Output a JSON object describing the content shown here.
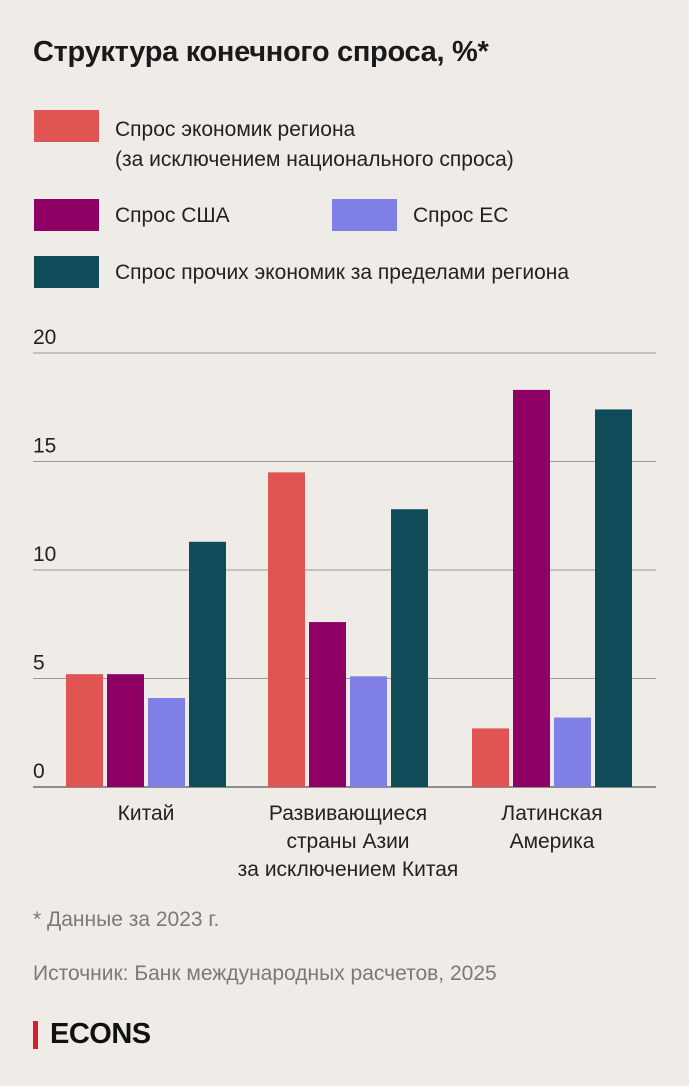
{
  "title": "Структура конечного спроса, %*",
  "legend": [
    {
      "label_line1": "Спрос экономик региона",
      "label_line2": "(за исключением национального спроса)",
      "color": "#e05553"
    },
    {
      "label": "Спрос США",
      "color": "#8e0064"
    },
    {
      "label": "Спрос ЕС",
      "color": "#7f7fe6"
    },
    {
      "label": "Спрос прочих экономик за пределами региона",
      "color": "#0e4c5a"
    }
  ],
  "chart_data": {
    "type": "bar",
    "title": "Структура конечного спроса, %*",
    "categories": [
      "Китай",
      "Развивающиеся страны Азии за исключением Китая",
      "Латинская Америка"
    ],
    "category_lines": [
      [
        "Китай"
      ],
      [
        "Развивающиеся",
        "страны Азии",
        "за исключением Китая"
      ],
      [
        "Латинская",
        "Америка"
      ]
    ],
    "series": [
      {
        "name": "Спрос экономик региона (за исключением национального спроса)",
        "color": "#e05553",
        "values": [
          5.2,
          14.5,
          2.7
        ]
      },
      {
        "name": "Спрос США",
        "color": "#8e0064",
        "values": [
          5.2,
          7.6,
          18.3
        ]
      },
      {
        "name": "Спрос ЕС",
        "color": "#7f7fe6",
        "values": [
          4.1,
          5.1,
          3.2
        ]
      },
      {
        "name": "Спрос прочих экономик за пределами региона",
        "color": "#0e4c5a",
        "values": [
          11.3,
          12.8,
          17.4
        ]
      }
    ],
    "y_ticks": [
      "0",
      "5",
      "10",
      "15",
      "20"
    ],
    "ylim": [
      0,
      20
    ],
    "grid": true,
    "legend_position": "top"
  },
  "footnote": "* Данные за 2023 г.",
  "source": "Источник: Банк международных расчетов, 2025",
  "brand": "ECONS"
}
